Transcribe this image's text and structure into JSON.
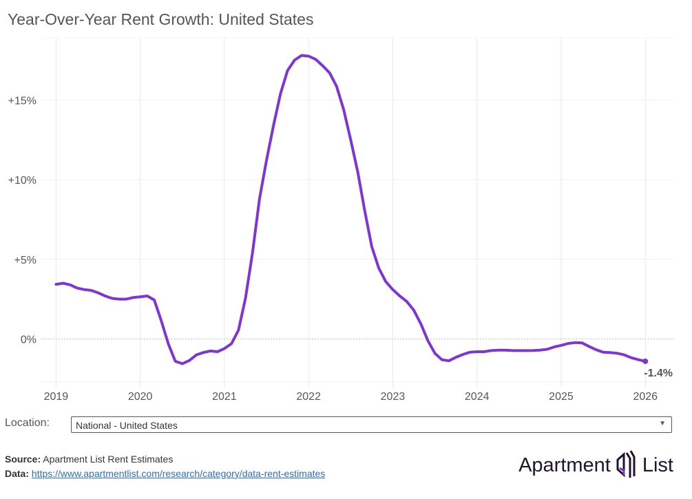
{
  "title": "Year-Over-Year Rent Growth: United States",
  "chart_data": {
    "type": "line",
    "title": "Year-Over-Year Rent Growth: United States",
    "xlabel": "",
    "ylabel": "",
    "x_ticks": [
      "2019",
      "2020",
      "2021",
      "2022",
      "2023",
      "2024",
      "2025",
      "2026"
    ],
    "y_ticks": [
      {
        "value": 0,
        "label": "0%"
      },
      {
        "value": 5,
        "label": "+5%"
      },
      {
        "value": 10,
        "label": "+10%"
      },
      {
        "value": 15,
        "label": "+15%"
      }
    ],
    "ylim": [
      -2.7,
      18.9
    ],
    "xlim": [
      "2018-11",
      "2026-05"
    ],
    "grid": true,
    "line_color": "#7f35d4",
    "end_label": "-1.4%",
    "start": "2019-01",
    "values": [
      3.43,
      3.5,
      3.4,
      3.2,
      3.1,
      3.05,
      2.9,
      2.7,
      2.55,
      2.5,
      2.5,
      2.6,
      2.65,
      2.7,
      2.45,
      1.15,
      -0.3,
      -1.4,
      -1.55,
      -1.35,
      -1.0,
      -0.85,
      -0.75,
      -0.8,
      -0.6,
      -0.3,
      0.55,
      2.55,
      5.4,
      8.8,
      11.2,
      13.4,
      15.4,
      16.85,
      17.5,
      17.8,
      17.75,
      17.55,
      17.15,
      16.7,
      15.85,
      14.4,
      12.5,
      10.5,
      8.05,
      5.8,
      4.45,
      3.6,
      3.1,
      2.7,
      2.35,
      1.8,
      0.95,
      -0.1,
      -0.9,
      -1.3,
      -1.37,
      -1.15,
      -0.97,
      -0.83,
      -0.8,
      -0.8,
      -0.73,
      -0.7,
      -0.7,
      -0.72,
      -0.73,
      -0.73,
      -0.72,
      -0.7,
      -0.65,
      -0.5,
      -0.4,
      -0.28,
      -0.23,
      -0.25,
      -0.47,
      -0.68,
      -0.83,
      -0.85,
      -0.9,
      -1.0,
      -1.18,
      -1.3,
      -1.4
    ]
  },
  "location": {
    "label": "Location:",
    "selected": "National - United States"
  },
  "footer": {
    "source_label": "Source:",
    "source_text": "Apartment List Rent Estimates",
    "data_label": "Data:",
    "data_link": "https://www.apartmentlist.com/research/category/data-rent-estimates"
  },
  "logo": {
    "text_left": "Apartment",
    "text_right": "List"
  }
}
